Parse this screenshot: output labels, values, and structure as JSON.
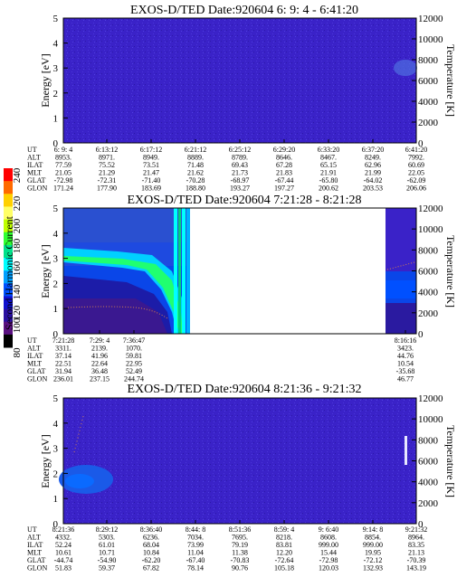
{
  "colorbar": {
    "label": "Second Harmonic Current",
    "ticks": [
      "240",
      "220",
      "200",
      "180",
      "160",
      "140",
      "120",
      "100",
      "80"
    ],
    "colors": [
      "#ff0000",
      "#ff6a00",
      "#ffd000",
      "#ffff66",
      "#bfff00",
      "#30ff30",
      "#00e08a",
      "#00ffff",
      "#00a0ff",
      "#0050ff",
      "#1010d0",
      "#2a10a0",
      "#5a1080",
      "#000000"
    ]
  },
  "chart_data": [
    {
      "type": "heatmap",
      "title": "EXOS-D/TED   Date:920604   6: 9: 4 - 6:41:20",
      "ylabel": "Energy [eV]",
      "y2label": "Temperature [K]",
      "ylim": [
        0,
        5
      ],
      "y2lim": [
        0,
        12000
      ],
      "yticks": [
        "0",
        "1",
        "2",
        "3",
        "4",
        "5"
      ],
      "y2ticks": [
        "0",
        "2000",
        "4000",
        "6000",
        "8000",
        "10000",
        "12000"
      ],
      "row_labels": [
        "UT",
        "ALT",
        "ILAT",
        "MLT",
        "GLAT",
        "GLON"
      ],
      "columns": [
        [
          "6: 9: 4",
          "8953.",
          "77.59",
          "21.05",
          "-72.98",
          "171.24"
        ],
        [
          "6:13:12",
          "8971.",
          "75.52",
          "21.29",
          "-72.31",
          "177.90"
        ],
        [
          "6:17:12",
          "8949.",
          "73.51",
          "21.47",
          "-71.40",
          "183.69"
        ],
        [
          "6:21:12",
          "8889.",
          "71.48",
          "21.62",
          "-70.28",
          "188.80"
        ],
        [
          "6:25:12",
          "8789.",
          "69.43",
          "21.73",
          "-68.97",
          "193.27"
        ],
        [
          "6:29:20",
          "8646.",
          "67.28",
          "21.83",
          "-67.44",
          "197.27"
        ],
        [
          "6:33:20",
          "8467.",
          "65.15",
          "21.91",
          "-65.80",
          "200.62"
        ],
        [
          "6:37:20",
          "8249.",
          "62.96",
          "21.99",
          "-64.02",
          "203.53"
        ],
        [
          "6:41:20",
          "7992.",
          "60.69",
          "22.05",
          "-62.09",
          "206.06"
        ]
      ]
    },
    {
      "type": "heatmap",
      "title": "EXOS-D/TED   Date:920604   7:21:28 - 8:21:28",
      "ylabel": "Energy [eV]",
      "y2label": "Temperature [K]",
      "ylim": [
        0,
        5
      ],
      "y2lim": [
        0,
        12000
      ],
      "yticks": [
        "0",
        "1",
        "2",
        "3",
        "4",
        "5"
      ],
      "y2ticks": [
        "0",
        "2000",
        "4000",
        "6000",
        "8000",
        "10000",
        "12000"
      ],
      "row_labels": [
        "UT",
        "ALT",
        "ILAT",
        "MLT",
        "GLAT",
        "GLON"
      ],
      "columns": [
        [
          "7:21:28",
          "3311.",
          "37.14",
          "22.51",
          "31.94",
          "236.01"
        ],
        [
          "7:29: 4",
          "2139.",
          "41.96",
          "22.64",
          "36.48",
          "237.15"
        ],
        [
          "7:36:47",
          "1070.",
          "59.81",
          "22.95",
          "52.49",
          "244.74"
        ],
        [
          "8:16:16",
          "3423.",
          "44.76",
          "10.54",
          "-35.68",
          "46.77"
        ]
      ]
    },
    {
      "type": "heatmap",
      "title": "EXOS-D/TED   Date:920604   8:21:36 - 9:21:32",
      "ylabel": "Energy [eV]",
      "y2label": "Temperature [K]",
      "ylim": [
        0,
        5
      ],
      "y2lim": [
        0,
        12000
      ],
      "yticks": [
        "0",
        "1",
        "2",
        "3",
        "4",
        "5"
      ],
      "y2ticks": [
        "0",
        "2000",
        "4000",
        "6000",
        "8000",
        "10000",
        "12000"
      ],
      "row_labels": [
        "UT",
        "ALT",
        "ILAT",
        "MLT",
        "GLAT",
        "GLON"
      ],
      "columns": [
        [
          "8:21:36",
          "4332.",
          "52.24",
          "10.61",
          "-44.74",
          "51.83"
        ],
        [
          "8:29:12",
          "5303.",
          "61.01",
          "10.71",
          "-54.90",
          "59.37"
        ],
        [
          "8:36:40",
          "6236.",
          "68.04",
          "10.84",
          "-62.20",
          "67.82"
        ],
        [
          "8:44: 8",
          "7034.",
          "73.99",
          "11.04",
          "-67.40",
          "78.14"
        ],
        [
          "8:51:36",
          "7695.",
          "79.19",
          "11.38",
          "-70.83",
          "90.76"
        ],
        [
          "8:59: 4",
          "8218.",
          "83.81",
          "12.20",
          "-72.64",
          "105.18"
        ],
        [
          "9: 6:40",
          "8608.",
          "999.00",
          "15.44",
          "-72.98",
          "120.03"
        ],
        [
          "9:14: 8",
          "8854.",
          "999.00",
          "19.95",
          "-72.12",
          "132.93"
        ],
        [
          "9:21:32",
          "8964.",
          "83.35",
          "21.13",
          "-70.39",
          "143.19"
        ]
      ]
    }
  ]
}
